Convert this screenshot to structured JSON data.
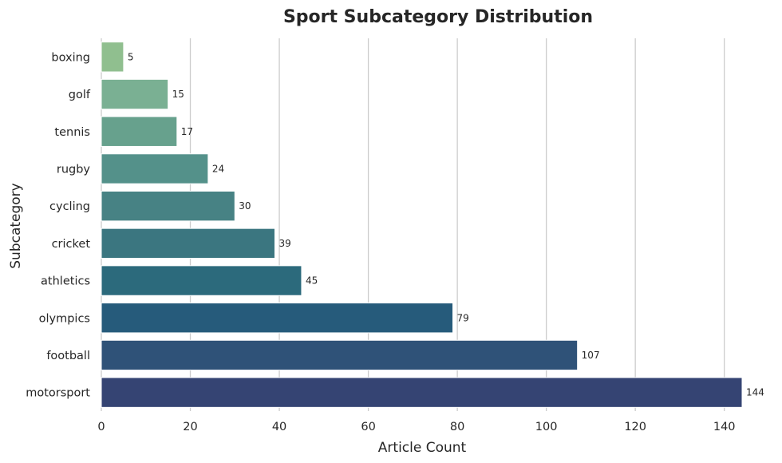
{
  "chart_data": {
    "type": "bar",
    "orientation": "horizontal",
    "title": "Sport Subcategory Distribution",
    "xlabel": "Article Count",
    "ylabel": "Subcategory",
    "categories": [
      "boxing",
      "golf",
      "tennis",
      "rugby",
      "cycling",
      "cricket",
      "athletics",
      "olympics",
      "football",
      "motorsport"
    ],
    "values": [
      5,
      15,
      17,
      24,
      30,
      39,
      45,
      79,
      107,
      144
    ],
    "colors": [
      "#90bf8f",
      "#7ab093",
      "#67a18d",
      "#54918a",
      "#478284",
      "#3b7680",
      "#2c6a7c",
      "#265b7b",
      "#2f5278",
      "#354473"
    ],
    "xlim": [
      0,
      144
    ],
    "xticks": [
      0,
      20,
      40,
      60,
      80,
      100,
      120,
      140
    ],
    "grid": "x"
  }
}
